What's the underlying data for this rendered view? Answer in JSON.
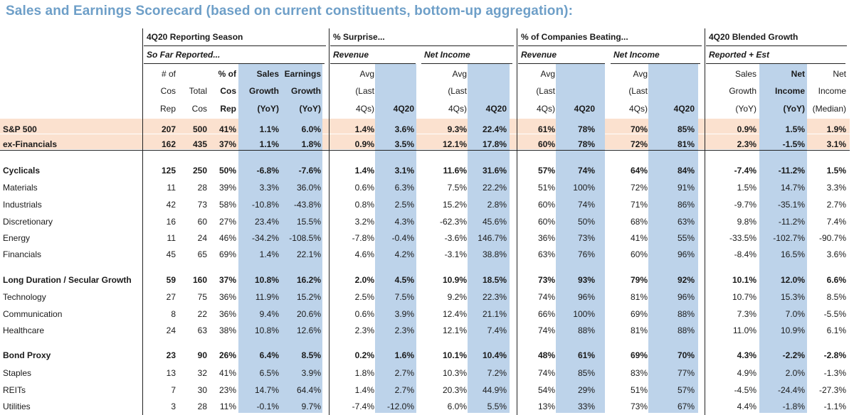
{
  "title": "Sales and Earnings Scorecard (based on current constituents, bottom-up aggregation):",
  "groups": [
    {
      "label": "4Q20 Reporting Season",
      "sub": [
        {
          "label": "So Far Reported..."
        }
      ]
    },
    {
      "label": "% Surprise...",
      "sub": [
        {
          "label": "Revenue"
        },
        {
          "label": "Net Income"
        }
      ]
    },
    {
      "label": "% of Companies Beating...",
      "sub": [
        {
          "label": "Revenue"
        },
        {
          "label": "Net Income"
        }
      ]
    },
    {
      "label": "4Q20 Blended Growth",
      "sub": [
        {
          "label": "Reported + Est"
        }
      ]
    }
  ],
  "columns": [
    {
      "lines": [
        "# of",
        "Cos",
        "Rep"
      ]
    },
    {
      "lines": [
        "",
        "Total",
        "Cos"
      ]
    },
    {
      "lines": [
        "% of",
        "Cos",
        "Rep"
      ],
      "bold": true
    },
    {
      "lines": [
        "Sales",
        "Growth",
        "(YoY)"
      ],
      "bold": true
    },
    {
      "lines": [
        "Earnings",
        "Growth",
        "(YoY)"
      ],
      "bold": true
    },
    {
      "lines": [
        "Avg",
        "(Last",
        "4Qs)"
      ]
    },
    {
      "lines": [
        "",
        "",
        "4Q20"
      ],
      "bold": true
    },
    {
      "lines": [
        "Avg",
        "(Last",
        "4Qs)"
      ]
    },
    {
      "lines": [
        "",
        "",
        "4Q20"
      ],
      "bold": true
    },
    {
      "lines": [
        "Avg",
        "(Last",
        "4Qs)"
      ]
    },
    {
      "lines": [
        "",
        "",
        "4Q20"
      ],
      "bold": true
    },
    {
      "lines": [
        "Avg",
        "(Last",
        "4Qs)"
      ]
    },
    {
      "lines": [
        "",
        "",
        "4Q20"
      ],
      "bold": true
    },
    {
      "lines": [
        "Sales",
        "Growth",
        "(YoY)"
      ]
    },
    {
      "lines": [
        "Net",
        "Income",
        "(YoY)"
      ],
      "bold": true
    },
    {
      "lines": [
        "Net",
        "Income",
        "(Median)"
      ]
    }
  ],
  "rows": [
    {
      "label": "S&P 500",
      "bold": true,
      "highlight": true,
      "values": [
        "207",
        "500",
        "41%",
        "1.1%",
        "6.0%",
        "1.4%",
        "3.6%",
        "9.3%",
        "22.4%",
        "61%",
        "78%",
        "70%",
        "85%",
        "0.9%",
        "1.5%",
        "1.9%"
      ]
    },
    {
      "label": "ex-Financials",
      "bold": true,
      "highlight": true,
      "values": [
        "162",
        "435",
        "37%",
        "1.1%",
        "1.8%",
        "0.9%",
        "3.5%",
        "12.1%",
        "17.8%",
        "60%",
        "78%",
        "72%",
        "81%",
        "2.3%",
        "-1.5%",
        "3.1%"
      ]
    },
    {
      "label": "Cyclicals",
      "bold": true,
      "values": [
        "125",
        "250",
        "50%",
        "-6.8%",
        "-7.6%",
        "1.4%",
        "3.1%",
        "11.6%",
        "31.6%",
        "57%",
        "74%",
        "64%",
        "84%",
        "-7.4%",
        "-11.2%",
        "1.5%"
      ]
    },
    {
      "label": "Materials",
      "values": [
        "11",
        "28",
        "39%",
        "3.3%",
        "36.0%",
        "0.6%",
        "6.3%",
        "7.5%",
        "22.2%",
        "51%",
        "100%",
        "72%",
        "91%",
        "1.5%",
        "14.7%",
        "3.3%"
      ]
    },
    {
      "label": "Industrials",
      "values": [
        "42",
        "73",
        "58%",
        "-10.8%",
        "-43.8%",
        "0.8%",
        "2.5%",
        "15.2%",
        "2.8%",
        "60%",
        "74%",
        "71%",
        "86%",
        "-9.7%",
        "-35.1%",
        "2.7%"
      ]
    },
    {
      "label": "Discretionary",
      "values": [
        "16",
        "60",
        "27%",
        "23.4%",
        "15.5%",
        "3.2%",
        "4.3%",
        "-62.3%",
        "45.6%",
        "60%",
        "50%",
        "68%",
        "63%",
        "9.8%",
        "-11.2%",
        "7.4%"
      ]
    },
    {
      "label": "Energy",
      "values": [
        "11",
        "24",
        "46%",
        "-34.2%",
        "-108.5%",
        "-7.8%",
        "-0.4%",
        "-3.6%",
        "146.7%",
        "36%",
        "73%",
        "41%",
        "55%",
        "-33.5%",
        "-102.7%",
        "-90.7%"
      ]
    },
    {
      "label": "Financials",
      "values": [
        "45",
        "65",
        "69%",
        "1.4%",
        "22.1%",
        "4.6%",
        "4.2%",
        "-3.1%",
        "38.8%",
        "63%",
        "76%",
        "60%",
        "96%",
        "-8.4%",
        "16.5%",
        "3.6%"
      ]
    },
    {
      "label": "Long Duration / Secular Growth",
      "bold": true,
      "values": [
        "59",
        "160",
        "37%",
        "10.8%",
        "16.2%",
        "2.0%",
        "4.5%",
        "10.9%",
        "18.5%",
        "73%",
        "93%",
        "79%",
        "92%",
        "10.1%",
        "12.0%",
        "6.6%"
      ]
    },
    {
      "label": "Technology",
      "values": [
        "27",
        "75",
        "36%",
        "11.9%",
        "15.2%",
        "2.5%",
        "7.5%",
        "9.2%",
        "22.3%",
        "74%",
        "96%",
        "81%",
        "96%",
        "10.7%",
        "15.3%",
        "8.5%"
      ]
    },
    {
      "label": "Communication",
      "values": [
        "8",
        "22",
        "36%",
        "9.4%",
        "20.6%",
        "0.6%",
        "3.9%",
        "12.4%",
        "21.1%",
        "66%",
        "100%",
        "69%",
        "88%",
        "7.3%",
        "7.0%",
        "-5.5%"
      ]
    },
    {
      "label": "Healthcare",
      "values": [
        "24",
        "63",
        "38%",
        "10.8%",
        "12.6%",
        "2.3%",
        "2.3%",
        "12.1%",
        "7.4%",
        "74%",
        "88%",
        "81%",
        "88%",
        "11.0%",
        "10.9%",
        "6.1%"
      ]
    },
    {
      "label": "Bond Proxy",
      "bold": true,
      "values": [
        "23",
        "90",
        "26%",
        "6.4%",
        "8.5%",
        "0.2%",
        "1.6%",
        "10.1%",
        "10.4%",
        "48%",
        "61%",
        "69%",
        "70%",
        "4.3%",
        "-2.2%",
        "-2.8%"
      ]
    },
    {
      "label": "Staples",
      "values": [
        "13",
        "32",
        "41%",
        "6.5%",
        "3.9%",
        "1.8%",
        "2.7%",
        "10.3%",
        "7.2%",
        "74%",
        "85%",
        "83%",
        "77%",
        "4.9%",
        "2.0%",
        "-1.3%"
      ]
    },
    {
      "label": "REITs",
      "values": [
        "7",
        "30",
        "23%",
        "14.7%",
        "64.4%",
        "1.4%",
        "2.7%",
        "20.3%",
        "44.9%",
        "54%",
        "29%",
        "51%",
        "57%",
        "-4.5%",
        "-24.4%",
        "-27.3%"
      ]
    },
    {
      "label": "Utilities",
      "values": [
        "3",
        "28",
        "11%",
        "-0.1%",
        "9.7%",
        "-7.4%",
        "-12.0%",
        "6.0%",
        "5.5%",
        "13%",
        "33%",
        "73%",
        "67%",
        "4.4%",
        "-1.8%",
        "-1.1%"
      ]
    }
  ]
}
